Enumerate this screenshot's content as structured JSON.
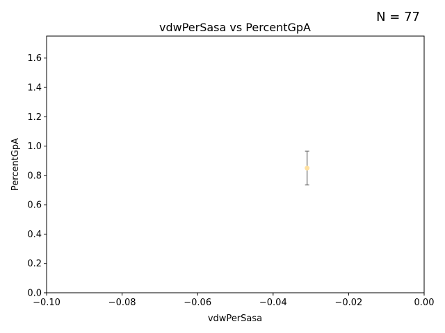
{
  "chart_data": {
    "type": "scatter",
    "title": "vdwPerSasa vs PercentGpA",
    "xlabel": "vdwPerSasa",
    "ylabel": "PercentGpA",
    "annotation": "N = 77",
    "xlim": [
      -0.1,
      0.0
    ],
    "ylim": [
      0.0,
      1.75
    ],
    "xticks": [
      -0.1,
      -0.08,
      -0.06,
      -0.04,
      -0.02,
      0.0
    ],
    "xtick_labels": [
      "−0.10",
      "−0.08",
      "−0.06",
      "−0.04",
      "−0.02",
      "0.00"
    ],
    "yticks": [
      0.0,
      0.2,
      0.4,
      0.6,
      0.8,
      1.0,
      1.2,
      1.4,
      1.6
    ],
    "ytick_labels": [
      "0.0",
      "0.2",
      "0.4",
      "0.6",
      "0.8",
      "1.0",
      "1.2",
      "1.4",
      "1.6"
    ],
    "grid": false,
    "points": [
      {
        "x": -0.031,
        "y": 0.85,
        "yerr_low": 0.735,
        "yerr_high": 0.965
      }
    ],
    "colors": {
      "point": "#ffe0a0",
      "errorbar": "#666666",
      "axis": "#000000"
    }
  }
}
